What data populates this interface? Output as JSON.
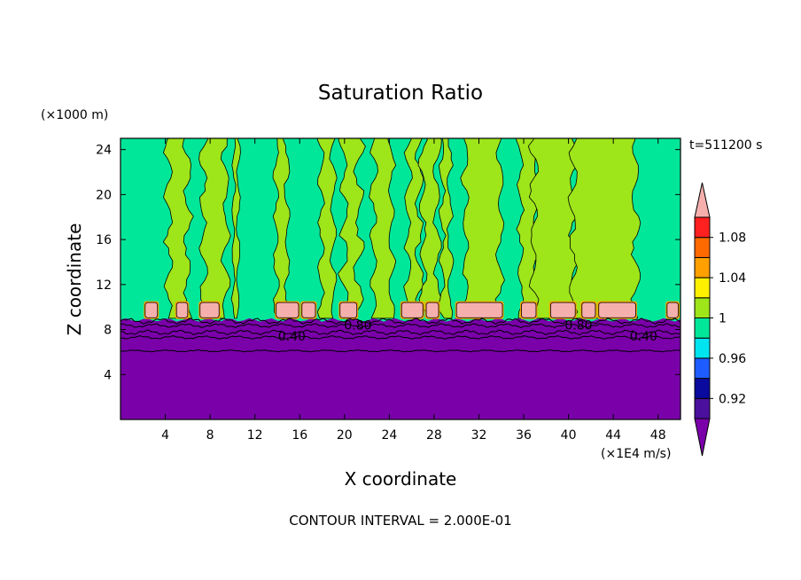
{
  "chart_data": {
    "type": "heatmap",
    "title": "Saturation Ratio",
    "xlabel": "X coordinate",
    "ylabel": "Z coordinate",
    "x_unit": "(×1E4 m/s)",
    "y_unit": "(×1000 m)",
    "time_label": "t=511200 s",
    "footer": "CONTOUR INTERVAL = 2.000E-01",
    "xlim": [
      0,
      50
    ],
    "ylim": [
      0,
      25
    ],
    "x_ticks": [
      "4",
      "8",
      "12",
      "16",
      "20",
      "24",
      "28",
      "32",
      "36",
      "40",
      "44",
      "48"
    ],
    "y_ticks": [
      "4",
      "8",
      "12",
      "16",
      "20",
      "24"
    ],
    "contour_labels": [
      {
        "text": "0.40",
        "x": 15.3,
        "y": 7.4
      },
      {
        "text": "0.80",
        "x": 21.2,
        "y": 8.4
      },
      {
        "text": "0.80",
        "x": 40.9,
        "y": 8.4
      },
      {
        "text": "0.40",
        "x": 46.7,
        "y": 7.4
      }
    ],
    "colorbar": {
      "labels": [
        "1.08",
        "1.04",
        "1",
        "0.96",
        "0.92"
      ],
      "bins": [
        {
          "lo": null,
          "hi": 0.9,
          "color": "#7a00aa"
        },
        {
          "lo": 0.9,
          "hi": 0.92,
          "color": "#4b109e"
        },
        {
          "lo": 0.92,
          "hi": 0.94,
          "color": "#0a0a9e"
        },
        {
          "lo": 0.94,
          "hi": 0.96,
          "color": "#1e5cff"
        },
        {
          "lo": 0.96,
          "hi": 0.98,
          "color": "#00e4f0"
        },
        {
          "lo": 0.98,
          "hi": 1.0,
          "color": "#00e79a"
        },
        {
          "lo": 1.0,
          "hi": 1.02,
          "color": "#9ee51a"
        },
        {
          "lo": 1.02,
          "hi": 1.04,
          "color": "#fff000"
        },
        {
          "lo": 1.04,
          "hi": 1.06,
          "color": "#ffa000"
        },
        {
          "lo": 1.06,
          "hi": 1.08,
          "color": "#ff6a00"
        },
        {
          "lo": 1.08,
          "hi": 1.1,
          "color": "#ff2020"
        },
        {
          "lo": 1.1,
          "hi": null,
          "color": "#f5b0ae"
        }
      ]
    },
    "fields": {
      "stratosphere_color": "#7a00aa",
      "background_color": "#00e79a",
      "supersat_color": "#9ee51a",
      "cloud_top_color": "#f5b0ae",
      "contour_color": "#000000"
    },
    "columns": [
      {
        "x0": 4.3,
        "x1": 6.0,
        "wobble": 0.35
      },
      {
        "x0": 7.4,
        "x1": 9.4,
        "wobble": 0.3
      },
      {
        "x0": 10.1,
        "x1": 10.5,
        "wobble": 0.15
      },
      {
        "x0": 13.9,
        "x1": 14.9,
        "wobble": 0.25
      },
      {
        "x0": 17.9,
        "x1": 19.0,
        "wobble": 0.25
      },
      {
        "x0": 20.0,
        "x1": 21.3,
        "wobble": 0.4
      },
      {
        "x0": 22.6,
        "x1": 24.2,
        "wobble": 0.3
      },
      {
        "x0": 25.7,
        "x1": 26.7,
        "wobble": 0.3
      },
      {
        "x0": 27.0,
        "x1": 28.3,
        "wobble": 0.3
      },
      {
        "x0": 28.7,
        "x1": 29.4,
        "wobble": 0.25
      },
      {
        "x0": 30.8,
        "x1": 33.9,
        "wobble": 0.3
      },
      {
        "x0": 35.7,
        "x1": 37.2,
        "wobble": 0.25
      },
      {
        "x0": 36.9,
        "x1": 40.5,
        "wobble": 0.35
      },
      {
        "x0": 40.4,
        "x1": 46.0,
        "wobble": 0.3
      }
    ],
    "caps": [
      {
        "x0": 2.2,
        "x1": 3.3
      },
      {
        "x0": 5.0,
        "x1": 6.0
      },
      {
        "x0": 7.1,
        "x1": 8.8
      },
      {
        "x0": 13.9,
        "x1": 15.9
      },
      {
        "x0": 16.2,
        "x1": 17.4
      },
      {
        "x0": 19.6,
        "x1": 21.1
      },
      {
        "x0": 25.1,
        "x1": 27.0
      },
      {
        "x0": 27.3,
        "x1": 28.4
      },
      {
        "x0": 30.0,
        "x1": 34.1
      },
      {
        "x0": 35.8,
        "x1": 37.1
      },
      {
        "x0": 38.4,
        "x1": 40.6
      },
      {
        "x0": 41.2,
        "x1": 42.4
      },
      {
        "x0": 42.7,
        "x1": 46.0
      },
      {
        "x0": 48.8,
        "x1": 49.8
      }
    ],
    "contours_low": [
      {
        "z": 8.75,
        "amp": 0.18
      },
      {
        "z": 8.35,
        "amp": 0.12
      },
      {
        "z": 7.75,
        "amp": 0.15
      },
      {
        "z": 7.3,
        "amp": 0.1
      },
      {
        "z": 6.1,
        "amp": 0.06
      }
    ]
  }
}
